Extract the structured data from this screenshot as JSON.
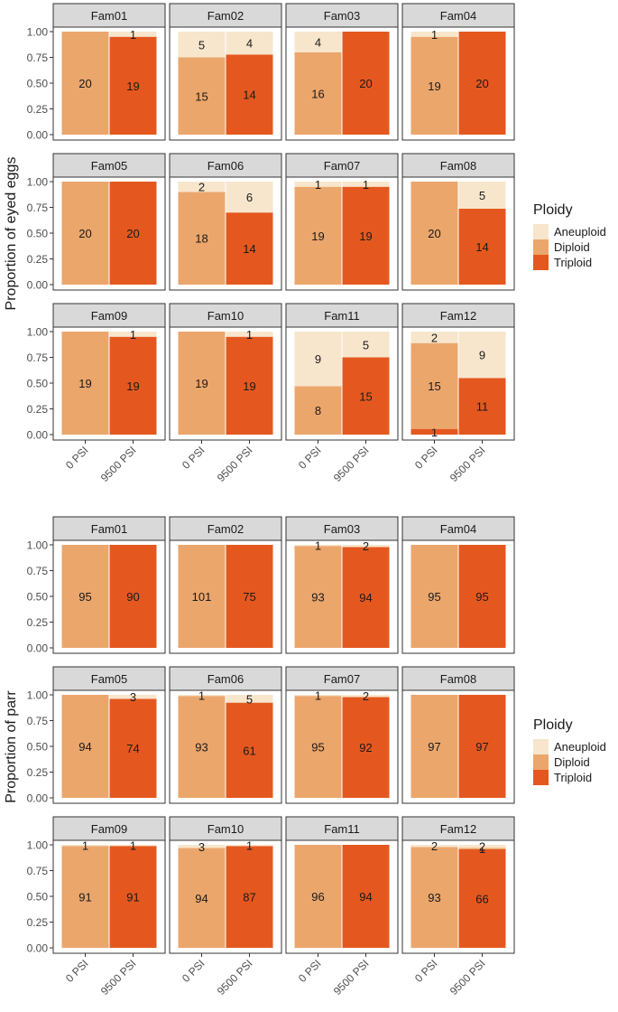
{
  "colors": {
    "Aneuploid": "#f7e6cc",
    "Diploid": "#eba66c",
    "Triploid": "#e4581f",
    "strip_bg": "#d9d9d9",
    "panel_border": "#333333",
    "text": "#1a1a1a",
    "tick_text": "#4d4d4d"
  },
  "chart_data": [
    {
      "type": "bar",
      "stacked": true,
      "ylabel": "Proportion of eyed eggs",
      "ylim": [
        0,
        1
      ],
      "yticks": [
        "0.00",
        "0.25",
        "0.50",
        "0.75",
        "1.00"
      ],
      "categories": [
        "0 PSI",
        "9500 PSI"
      ],
      "legend_title": "Ploidy",
      "legend_items": [
        "Aneuploid",
        "Diploid",
        "Triploid"
      ],
      "legend_placement": "right",
      "series_order": [
        "Triploid",
        "Diploid",
        "Aneuploid"
      ],
      "facets": [
        {
          "name": "Fam01",
          "bars": [
            {
              "Triploid": 0,
              "Diploid": 20,
              "Aneuploid": 0
            },
            {
              "Triploid": 19,
              "Diploid": 0,
              "Aneuploid": 1
            }
          ]
        },
        {
          "name": "Fam02",
          "bars": [
            {
              "Triploid": 0,
              "Diploid": 15,
              "Aneuploid": 5
            },
            {
              "Triploid": 14,
              "Diploid": 0,
              "Aneuploid": 4
            }
          ]
        },
        {
          "name": "Fam03",
          "bars": [
            {
              "Triploid": 0,
              "Diploid": 16,
              "Aneuploid": 4
            },
            {
              "Triploid": 20,
              "Diploid": 0,
              "Aneuploid": 0
            }
          ]
        },
        {
          "name": "Fam04",
          "bars": [
            {
              "Triploid": 0,
              "Diploid": 19,
              "Aneuploid": 1
            },
            {
              "Triploid": 20,
              "Diploid": 0,
              "Aneuploid": 0
            }
          ]
        },
        {
          "name": "Fam05",
          "bars": [
            {
              "Triploid": 0,
              "Diploid": 20,
              "Aneuploid": 0
            },
            {
              "Triploid": 20,
              "Diploid": 0,
              "Aneuploid": 0
            }
          ]
        },
        {
          "name": "Fam06",
          "bars": [
            {
              "Triploid": 0,
              "Diploid": 18,
              "Aneuploid": 2
            },
            {
              "Triploid": 14,
              "Diploid": 0,
              "Aneuploid": 6
            }
          ]
        },
        {
          "name": "Fam07",
          "bars": [
            {
              "Triploid": 0,
              "Diploid": 19,
              "Aneuploid": 1
            },
            {
              "Triploid": 19,
              "Diploid": 0,
              "Aneuploid": 1
            }
          ]
        },
        {
          "name": "Fam08",
          "bars": [
            {
              "Triploid": 0,
              "Diploid": 20,
              "Aneuploid": 0
            },
            {
              "Triploid": 14,
              "Diploid": 0,
              "Aneuploid": 5
            }
          ]
        },
        {
          "name": "Fam09",
          "bars": [
            {
              "Triploid": 0,
              "Diploid": 19,
              "Aneuploid": 0
            },
            {
              "Triploid": 19,
              "Diploid": 0,
              "Aneuploid": 1
            }
          ]
        },
        {
          "name": "Fam10",
          "bars": [
            {
              "Triploid": 0,
              "Diploid": 19,
              "Aneuploid": 0
            },
            {
              "Triploid": 19,
              "Diploid": 0,
              "Aneuploid": 1
            }
          ]
        },
        {
          "name": "Fam11",
          "bars": [
            {
              "Triploid": 0,
              "Diploid": 8,
              "Aneuploid": 9
            },
            {
              "Triploid": 15,
              "Diploid": 0,
              "Aneuploid": 5
            }
          ]
        },
        {
          "name": "Fam12",
          "bars": [
            {
              "Triploid": 1,
              "Diploid": 15,
              "Aneuploid": 2
            },
            {
              "Triploid": 11,
              "Diploid": 0,
              "Aneuploid": 9
            }
          ]
        }
      ]
    },
    {
      "type": "bar",
      "stacked": true,
      "ylabel": "Proportion of parr",
      "ylim": [
        0,
        1
      ],
      "yticks": [
        "0.00",
        "0.25",
        "0.50",
        "0.75",
        "1.00"
      ],
      "categories": [
        "0 PSI",
        "9500 PSI"
      ],
      "legend_title": "Ploidy",
      "legend_items": [
        "Aneuploid",
        "Diploid",
        "Triploid"
      ],
      "legend_placement": "right",
      "series_order": [
        "Triploid",
        "Diploid",
        "Aneuploid"
      ],
      "facets": [
        {
          "name": "Fam01",
          "bars": [
            {
              "Triploid": 0,
              "Diploid": 95,
              "Aneuploid": 0
            },
            {
              "Triploid": 90,
              "Diploid": 0,
              "Aneuploid": 0
            }
          ]
        },
        {
          "name": "Fam02",
          "bars": [
            {
              "Triploid": 0,
              "Diploid": 101,
              "Aneuploid": 0
            },
            {
              "Triploid": 75,
              "Diploid": 0,
              "Aneuploid": 0
            }
          ]
        },
        {
          "name": "Fam03",
          "bars": [
            {
              "Triploid": 0,
              "Diploid": 93,
              "Aneuploid": 1
            },
            {
              "Triploid": 94,
              "Diploid": 0,
              "Aneuploid": 2
            }
          ]
        },
        {
          "name": "Fam04",
          "bars": [
            {
              "Triploid": 0,
              "Diploid": 95,
              "Aneuploid": 0
            },
            {
              "Triploid": 95,
              "Diploid": 0,
              "Aneuploid": 0
            }
          ]
        },
        {
          "name": "Fam05",
          "bars": [
            {
              "Triploid": 0,
              "Diploid": 94,
              "Aneuploid": 0
            },
            {
              "Triploid": 74,
              "Diploid": 0,
              "Aneuploid": 3
            }
          ]
        },
        {
          "name": "Fam06",
          "bars": [
            {
              "Triploid": 0,
              "Diploid": 93,
              "Aneuploid": 1
            },
            {
              "Triploid": 61,
              "Diploid": 0,
              "Aneuploid": 5
            }
          ]
        },
        {
          "name": "Fam07",
          "bars": [
            {
              "Triploid": 0,
              "Diploid": 95,
              "Aneuploid": 1
            },
            {
              "Triploid": 92,
              "Diploid": 0,
              "Aneuploid": 2
            }
          ]
        },
        {
          "name": "Fam08",
          "bars": [
            {
              "Triploid": 0,
              "Diploid": 97,
              "Aneuploid": 0
            },
            {
              "Triploid": 97,
              "Diploid": 0,
              "Aneuploid": 0
            }
          ]
        },
        {
          "name": "Fam09",
          "bars": [
            {
              "Triploid": 0,
              "Diploid": 91,
              "Aneuploid": 1
            },
            {
              "Triploid": 91,
              "Diploid": 0,
              "Aneuploid": 1
            }
          ]
        },
        {
          "name": "Fam10",
          "bars": [
            {
              "Triploid": 0,
              "Diploid": 94,
              "Aneuploid": 3
            },
            {
              "Triploid": 87,
              "Diploid": 0,
              "Aneuploid": 1
            }
          ]
        },
        {
          "name": "Fam11",
          "bars": [
            {
              "Triploid": 0,
              "Diploid": 96,
              "Aneuploid": 0
            },
            {
              "Triploid": 94,
              "Diploid": 0,
              "Aneuploid": 0
            }
          ]
        },
        {
          "name": "Fam12",
          "bars": [
            {
              "Triploid": 0,
              "Diploid": 93,
              "Aneuploid": 2
            },
            {
              "Triploid": 66,
              "Diploid": 1,
              "Aneuploid": 2
            }
          ]
        }
      ]
    }
  ]
}
